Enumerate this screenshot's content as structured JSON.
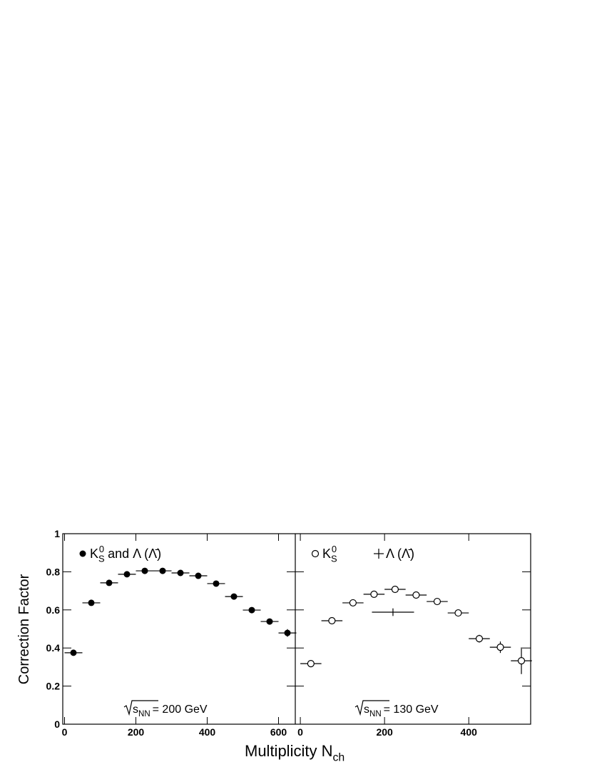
{
  "chart_data": [
    {
      "type": "scatter",
      "xlim": [
        -5,
        647
      ],
      "ylim": [
        0,
        1
      ],
      "xticks": [
        0,
        200,
        400,
        600
      ],
      "yticks": [
        0,
        0.2,
        0.4,
        0.6,
        0.8,
        1
      ],
      "ytick_labels": true,
      "annotation": {
        "base": "s",
        "sub": "NN",
        "rest": "= 200 GeV"
      },
      "series": [
        {
          "name_parts": {
            "base": "K",
            "sub": "S",
            "sup": "0",
            "rest": " and Λ (Λ̄)"
          },
          "marker": "filled",
          "color": "#000000",
          "x": [
            25,
            75,
            125,
            175,
            225,
            275,
            325,
            375,
            425,
            475,
            525,
            575,
            625
          ],
          "values": [
            0.375,
            0.637,
            0.742,
            0.787,
            0.805,
            0.805,
            0.794,
            0.779,
            0.738,
            0.67,
            0.599,
            0.539,
            0.479
          ],
          "x_err": [
            25,
            25,
            25,
            25,
            25,
            25,
            25,
            25,
            25,
            25,
            25,
            25,
            25
          ],
          "y_err": [
            0.005,
            0.005,
            0.005,
            0.005,
            0.005,
            0.005,
            0.005,
            0.005,
            0.005,
            0.005,
            0.005,
            0.005,
            0.02
          ]
        }
      ]
    },
    {
      "type": "scatter",
      "xlim": [
        -12,
        547
      ],
      "ylim": [
        0,
        1
      ],
      "xticks": [
        0,
        200,
        400
      ],
      "yticks": [
        0,
        0.2,
        0.4,
        0.6,
        0.8,
        1
      ],
      "ytick_labels": false,
      "annotation": {
        "base": "s",
        "sub": "NN",
        "rest": "= 130 GeV"
      },
      "series": [
        {
          "name_parts": {
            "base": "K",
            "sub": "S",
            "sup": "0"
          },
          "marker": "open",
          "color": "#000000",
          "x": [
            25,
            75,
            125,
            175,
            225,
            275,
            325,
            375,
            425,
            475,
            525
          ],
          "values": [
            0.318,
            0.543,
            0.637,
            0.682,
            0.708,
            0.678,
            0.644,
            0.584,
            0.449,
            0.404,
            0.333
          ],
          "x_err": [
            25,
            25,
            25,
            25,
            25,
            25,
            25,
            25,
            25,
            25,
            25
          ],
          "y_err": [
            0.005,
            0.005,
            0.005,
            0.005,
            0.005,
            0.005,
            0.005,
            0.005,
            0.02,
            0.03,
            0.07
          ]
        },
        {
          "name_parts": {
            "rest": "Λ (Λ̄)"
          },
          "marker": "none",
          "color": "#000000",
          "x": [
            220
          ],
          "values": [
            0.588
          ],
          "x_err": [
            50
          ],
          "y_err": [
            0.02
          ]
        }
      ]
    }
  ],
  "xlabel": {
    "base": "Multiplicity N",
    "sub": "ch"
  },
  "ylabel": "Correction Factor"
}
